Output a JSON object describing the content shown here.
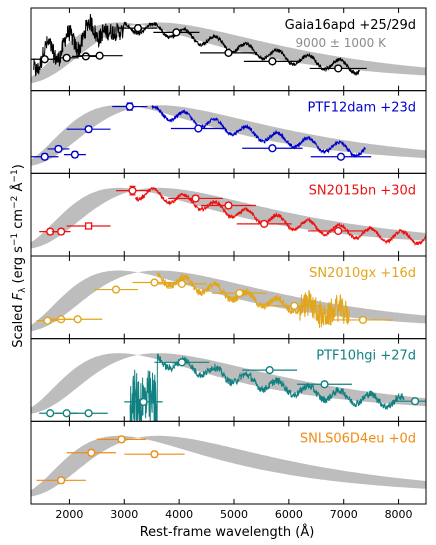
{
  "chart_data": {
    "type": "line",
    "xlabel": "Rest-frame wavelength (Å)",
    "ylabel": "Scaled F_λ (erg s^-1 cm^-2 Å^-1)",
    "ylabel_parts": {
      "pre": "Scaled ",
      "F": "F",
      "lam": "λ",
      "mid": " (erg s",
      "e1": "−1",
      "cm": " cm",
      "e2": "−2",
      "A": " Å",
      "e3": "−1",
      "post": ")"
    },
    "xlim": [
      1300,
      8500
    ],
    "xticks": [
      2000,
      3000,
      4000,
      5000,
      6000,
      7000,
      8000
    ],
    "ylim": [
      0,
      1
    ],
    "grid": false,
    "blackbody_band": {
      "temperature": "9000 ± 1000 K",
      "T_low_K": 8000,
      "T_high_K": 10000,
      "color": "#bdbdbd"
    },
    "panels": [
      {
        "label": "Gaia16apd +25/29d",
        "sublabel": "9000 ± 1000 K",
        "color": "#000000",
        "photometry": [
          {
            "x": 1550,
            "y": 0.36,
            "xerr": 250,
            "yerr": 0.03
          },
          {
            "x": 1950,
            "y": 0.38,
            "xerr": 220,
            "yerr": 0.03
          },
          {
            "x": 2300,
            "y": 0.4,
            "xerr": 250,
            "yerr": 0.03
          },
          {
            "x": 2550,
            "y": 0.41,
            "xerr": 420,
            "yerr": 0.03
          },
          {
            "x": 3250,
            "y": 0.8,
            "xerr": 350,
            "yerr": 0.04
          },
          {
            "x": 3950,
            "y": 0.74,
            "xerr": 420,
            "yerr": 0.03
          },
          {
            "x": 4900,
            "y": 0.45,
            "xerr": 520,
            "yerr": 0.02
          },
          {
            "x": 5700,
            "y": 0.33,
            "xerr": 520,
            "yerr": 0.02
          },
          {
            "x": 6900,
            "y": 0.23,
            "xerr": 520,
            "yerr": 0.02
          }
        ],
        "spectrum": {
          "x_range": [
            1350,
            7300
          ]
        }
      },
      {
        "label": "PTF12dam +23d",
        "color": "#0000cc",
        "photometry": [
          {
            "x": 1550,
            "y": 0.15,
            "xerr": 250,
            "yerr": 0.04
          },
          {
            "x": 1800,
            "y": 0.26,
            "xerr": 200,
            "yerr": 0.04
          },
          {
            "x": 2100,
            "y": 0.18,
            "xerr": 200,
            "yerr": 0.04
          },
          {
            "x": 2350,
            "y": 0.54,
            "xerr": 400,
            "yerr": 0.04
          },
          {
            "x": 3100,
            "y": 0.86,
            "xerr": 320,
            "yerr": 0.05
          },
          {
            "x": 4350,
            "y": 0.55,
            "xerr": 500,
            "yerr": 0.03
          },
          {
            "x": 5700,
            "y": 0.27,
            "xerr": 550,
            "yerr": 0.03
          },
          {
            "x": 6950,
            "y": 0.15,
            "xerr": 550,
            "yerr": 0.02
          }
        ],
        "spectrum": {
          "x_range": [
            3500,
            7400
          ]
        }
      },
      {
        "label": "SN2015bn +30d",
        "color": "#ee1111",
        "photometry": [
          {
            "x": 1650,
            "y": 0.26,
            "xerr": 200,
            "yerr": 0.04
          },
          {
            "x": 1850,
            "y": 0.26,
            "xerr": 170,
            "yerr": 0.04
          },
          {
            "x": 2350,
            "y": 0.34,
            "xerr": 400,
            "yerr": 0.04
          },
          {
            "x": 3150,
            "y": 0.84,
            "xerr": 300,
            "yerr": 0.06
          },
          {
            "x": 4300,
            "y": 0.73,
            "xerr": 500,
            "yerr": 0.04
          },
          {
            "x": 4900,
            "y": 0.63,
            "xerr": 500,
            "yerr": 0.04
          },
          {
            "x": 5550,
            "y": 0.37,
            "xerr": 500,
            "yerr": 0.03
          },
          {
            "x": 6900,
            "y": 0.27,
            "xerr": 550,
            "yerr": 0.02
          }
        ],
        "spectrum": {
          "x_range": [
            3200,
            8500
          ]
        }
      },
      {
        "label": "SN2010gx +16d",
        "color": "#e2a51b",
        "photometry": [
          {
            "x": 1600,
            "y": 0.17,
            "xerr": 200,
            "yerr": 0.02
          },
          {
            "x": 1850,
            "y": 0.19,
            "xerr": 200,
            "yerr": 0.02
          },
          {
            "x": 2150,
            "y": 0.19,
            "xerr": 450,
            "yerr": 0.02
          },
          {
            "x": 2850,
            "y": 0.61,
            "xerr": 400,
            "yerr": 0.02
          },
          {
            "x": 3550,
            "y": 0.71,
            "xerr": 400,
            "yerr": 0.02
          },
          {
            "x": 4050,
            "y": 0.69,
            "xerr": 450,
            "yerr": 0.02
          },
          {
            "x": 5100,
            "y": 0.56,
            "xerr": 500,
            "yerr": 0.02
          },
          {
            "x": 6100,
            "y": 0.38,
            "xerr": 500,
            "yerr": 0.02
          },
          {
            "x": 7350,
            "y": 0.18,
            "xerr": 550,
            "yerr": 0.02
          }
        ],
        "spectrum": {
          "x_range": [
            3600,
            7100
          ]
        }
      },
      {
        "label": "PTF10hgi +27d",
        "color": "#118080",
        "photometry": [
          {
            "x": 1650,
            "y": 0.03,
            "xerr": 200,
            "yerr": 0.02
          },
          {
            "x": 1950,
            "y": 0.03,
            "xerr": 200,
            "yerr": 0.02
          },
          {
            "x": 2350,
            "y": 0.03,
            "xerr": 350,
            "yerr": 0.02
          },
          {
            "x": 3350,
            "y": 0.19,
            "xerr": 350,
            "yerr": 0.03
          },
          {
            "x": 4050,
            "y": 0.75,
            "xerr": 500,
            "yerr": 0.03
          },
          {
            "x": 5650,
            "y": 0.64,
            "xerr": 500,
            "yerr": 0.03
          },
          {
            "x": 6650,
            "y": 0.44,
            "xerr": 500,
            "yerr": 0.03
          },
          {
            "x": 8300,
            "y": 0.2,
            "xerr": 400,
            "yerr": 0.02
          }
        ],
        "spectrum": {
          "x_range": [
            3100,
            8100
          ]
        }
      },
      {
        "label": "SNLS06D4eu +0d",
        "color": "#ee8c14",
        "photometry": [
          {
            "x": 1850,
            "y": 0.25,
            "xerr": 450,
            "yerr": 0.04
          },
          {
            "x": 2400,
            "y": 0.64,
            "xerr": 450,
            "yerr": 0.04
          },
          {
            "x": 2950,
            "y": 0.83,
            "xerr": 450,
            "yerr": 0.04
          },
          {
            "x": 3550,
            "y": 0.62,
            "xerr": 550,
            "yerr": 0.04
          }
        ],
        "spectrum": null
      }
    ]
  }
}
